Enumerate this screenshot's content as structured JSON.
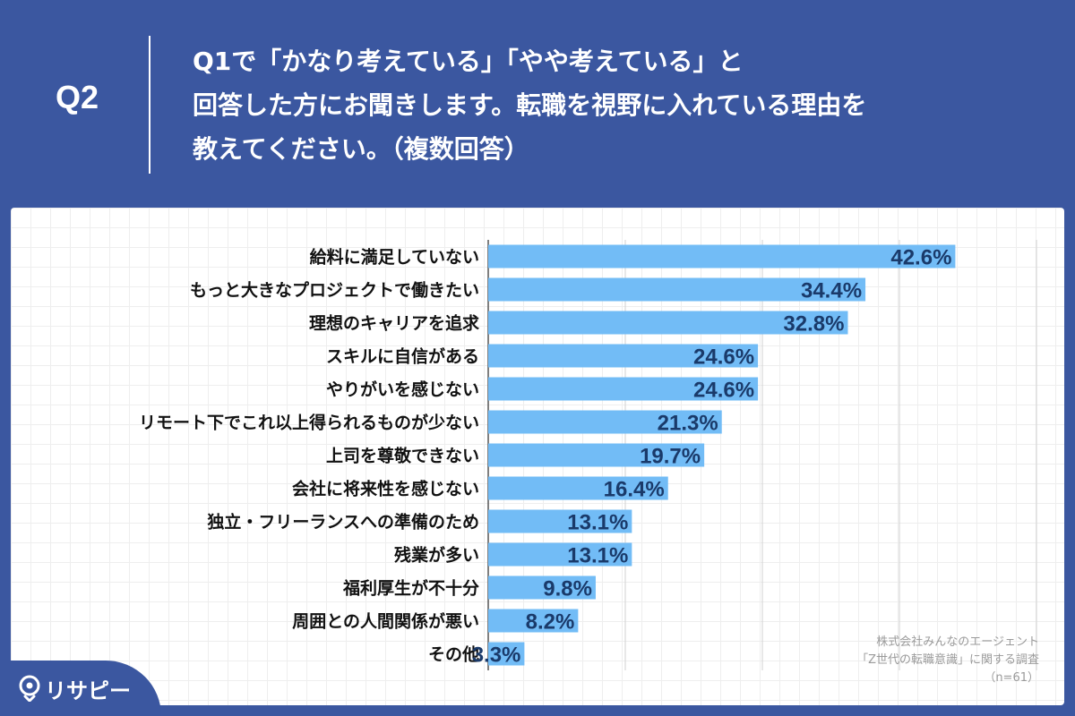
{
  "header": {
    "question_number": "Q2",
    "question_lines": [
      "Q1で「かなり考えている」「やや考えている」と",
      "回答した方にお聞きします。転職を視野に入れている理由を",
      "教えてください。（複数回答）"
    ]
  },
  "colors": {
    "background": "#3b57a0",
    "bar": "#72bcf6",
    "value_label": "#1a3a6a",
    "category_label": "#111111",
    "gridline": "#d2d2d2"
  },
  "chart_data": {
    "type": "bar",
    "orientation": "horizontal",
    "categories": [
      "給料に満足していない",
      "もっと大きなプロジェクトで働きたい",
      "理想のキャリアを追求",
      "スキルに自信がある",
      "やりがいを感じない",
      "リモート下でこれ以上得られるものが少ない",
      "上司を尊敬できない",
      "会社に将来性を感じない",
      "独立・フリーランスへの準備のため",
      "残業が多い",
      "福利厚生が不十分",
      "周囲との人間関係が悪い",
      "その他"
    ],
    "values": [
      42.6,
      34.4,
      32.8,
      24.6,
      24.6,
      21.3,
      19.7,
      16.4,
      13.1,
      13.1,
      9.8,
      8.2,
      3.3
    ],
    "value_suffix": "%",
    "xlim": [
      0,
      50
    ],
    "gridline_values": [
      12.5,
      25,
      37.5,
      50
    ],
    "grid": true,
    "legend": "none"
  },
  "source": {
    "lines": [
      "株式会社みんなのエージェント",
      "「Z世代の転職意識」に関する調査",
      "（n=61）"
    ]
  },
  "logo": {
    "text": "リサピー",
    "icon": "pin-icon"
  }
}
